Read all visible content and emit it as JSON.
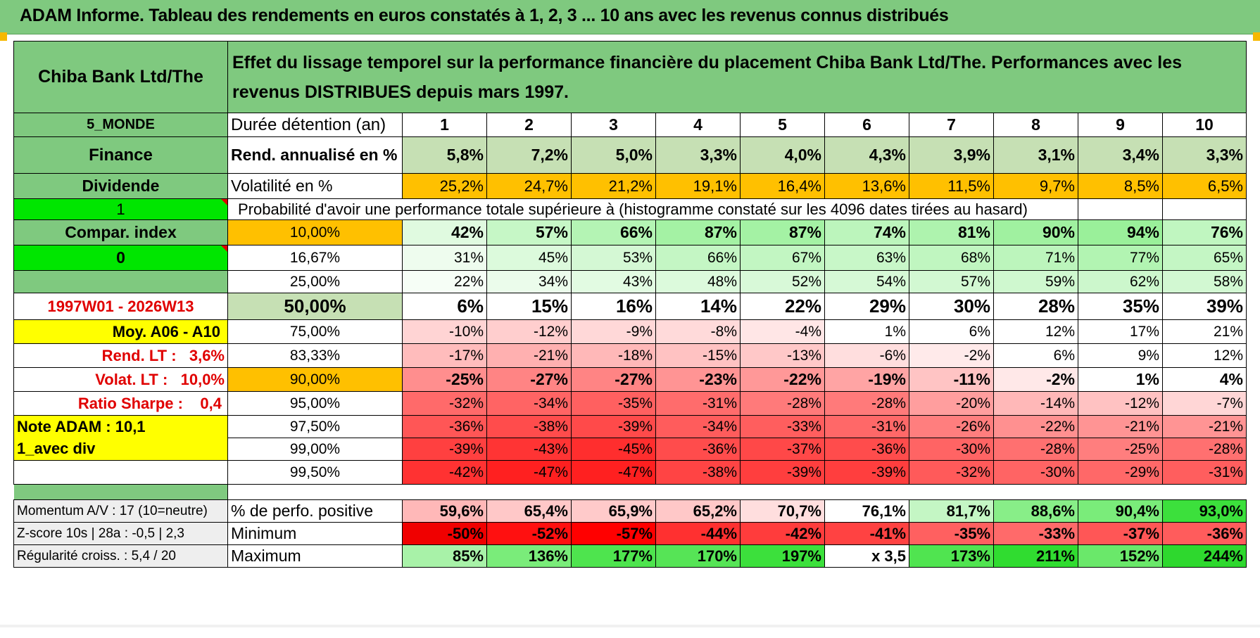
{
  "title": "ADAM Informe. Tableau des rendements en euros constatés à 1, 2, 3 ... 10 ans avec les revenus connus distribués",
  "header": {
    "name": "Chiba Bank Ltd/The",
    "description": "Effet du lissage temporel sur la performance financière du placement Chiba Bank Ltd/The. Performances avec les revenus DISTRIBUES depuis mars 1997."
  },
  "duration": {
    "left": "5_MONDE",
    "label": "Durée détention (an)",
    "years": [
      "1",
      "2",
      "3",
      "4",
      "5",
      "6",
      "7",
      "8",
      "9",
      "10"
    ]
  },
  "rend": {
    "left": "Finance",
    "label": "Rend. annualisé en %",
    "values": [
      "5,8%",
      "7,2%",
      "5,0%",
      "3,3%",
      "4,0%",
      "4,3%",
      "3,9%",
      "3,1%",
      "3,4%",
      "3,3%"
    ]
  },
  "vol": {
    "left": "Dividende",
    "label": "Volatilité en %",
    "values": [
      "25,2%",
      "24,7%",
      "21,2%",
      "19,1%",
      "16,4%",
      "13,6%",
      "11,5%",
      "9,7%",
      "8,5%",
      "6,5%"
    ]
  },
  "prob": {
    "left": "1",
    "text": "Probabilité d'avoir une performance totale supérieure à (histogramme constaté sur les 4096 dates tirées au hasard)"
  },
  "rows": [
    {
      "left": "Compar. index",
      "pct": "10,00%",
      "values": [
        "42%",
        "57%",
        "66%",
        "87%",
        "87%",
        "74%",
        "81%",
        "90%",
        "94%",
        "76%"
      ]
    },
    {
      "left": "0",
      "pct": "16,67%",
      "values": [
        "31%",
        "45%",
        "53%",
        "66%",
        "67%",
        "63%",
        "68%",
        "71%",
        "77%",
        "65%"
      ]
    },
    {
      "left": "",
      "pct": "25,00%",
      "values": [
        "22%",
        "34%",
        "43%",
        "48%",
        "52%",
        "54%",
        "57%",
        "59%",
        "62%",
        "58%"
      ]
    },
    {
      "left": "1997W01 - 2026W13",
      "pct": "50,00%",
      "values": [
        "6%",
        "15%",
        "16%",
        "14%",
        "22%",
        "29%",
        "30%",
        "28%",
        "35%",
        "39%"
      ]
    },
    {
      "left": "Moy. A06 - A10",
      "pct": "75,00%",
      "values": [
        "-10%",
        "-12%",
        "-9%",
        "-8%",
        "-4%",
        "1%",
        "6%",
        "12%",
        "17%",
        "21%"
      ]
    },
    {
      "left": "Rend. LT :   3,6%",
      "pct": "83,33%",
      "values": [
        "-17%",
        "-21%",
        "-18%",
        "-15%",
        "-13%",
        "-6%",
        "-2%",
        "6%",
        "9%",
        "12%"
      ]
    },
    {
      "left": "Volat. LT :   10,0%",
      "pct": "90,00%",
      "values": [
        "-25%",
        "-27%",
        "-27%",
        "-23%",
        "-22%",
        "-19%",
        "-11%",
        "-2%",
        "1%",
        "4%"
      ]
    },
    {
      "left": "Ratio Sharpe :    0,4",
      "pct": "95,00%",
      "values": [
        "-32%",
        "-34%",
        "-35%",
        "-31%",
        "-28%",
        "-28%",
        "-20%",
        "-14%",
        "-12%",
        "-7%"
      ]
    },
    {
      "left": "Note ADAM : 10,1",
      "pct": "97,50%",
      "values": [
        "-36%",
        "-38%",
        "-39%",
        "-34%",
        "-33%",
        "-31%",
        "-26%",
        "-22%",
        "-21%",
        "-21%"
      ]
    },
    {
      "left": "1_avec div",
      "pct": "99,00%",
      "values": [
        "-39%",
        "-43%",
        "-45%",
        "-36%",
        "-37%",
        "-36%",
        "-30%",
        "-28%",
        "-25%",
        "-28%"
      ]
    },
    {
      "left": "",
      "pct": "99,50%",
      "values": [
        "-42%",
        "-47%",
        "-47%",
        "-38%",
        "-39%",
        "-39%",
        "-32%",
        "-30%",
        "-29%",
        "-31%"
      ]
    }
  ],
  "bottom": [
    {
      "left": "Momentum A/V : 17 (10=neutre)",
      "label": "% de perfo. positive",
      "values": [
        "59,6%",
        "65,4%",
        "65,9%",
        "65,2%",
        "70,7%",
        "76,1%",
        "81,7%",
        "88,6%",
        "90,4%",
        "93,0%"
      ]
    },
    {
      "left": "Z-score 10s | 28a : -0,5 | 2,3",
      "label": "Minimum",
      "values": [
        "-50%",
        "-52%",
        "-57%",
        "-44%",
        "-42%",
        "-41%",
        "-35%",
        "-33%",
        "-37%",
        "-36%"
      ]
    },
    {
      "left": "Régularité croiss. : 5,4 / 20",
      "label": "Maximum",
      "values": [
        "85%",
        "136%",
        "177%",
        "170%",
        "197%",
        "x 3,5",
        "173%",
        "211%",
        "152%",
        "244%"
      ]
    }
  ],
  "colors": {
    "header_green": "#7fc97f",
    "light_green": "#c6e0b4",
    "orange": "#ffc000",
    "yellow": "#ffff00",
    "bright_green": "#00e600",
    "red_text": "#e00000"
  },
  "cell_colors": {
    "rows": [
      [
        "#e0fae0",
        "#c6f7c6",
        "#b4f4b4",
        "#a4f2a4",
        "#a4f2a4",
        "#bcf5bc",
        "#aef3ae",
        "#a0f1a0",
        "#9af09a",
        "#c0f6c0"
      ],
      [
        "#eefcee",
        "#dcfadc",
        "#d4f8d4",
        "#c4f6c4",
        "#c2f6c2",
        "#c8f7c8",
        "#c0f6c0",
        "#bcf5bc",
        "#b2f4b2",
        "#c4f6c4"
      ],
      [
        "#f6fef6",
        "#ebfceb",
        "#e2fbe2",
        "#dcfadc",
        "#d8f9d8",
        "#d6f9d6",
        "#d2f8d2",
        "#cff8cf",
        "#ccf7cc",
        "#d2f8d2"
      ],
      [
        "#ffffff",
        "#ffffff",
        "#ffffff",
        "#ffffff",
        "#ffffff",
        "#ffffff",
        "#ffffff",
        "#ffffff",
        "#ffffff",
        "#ffffff"
      ],
      [
        "#ffd4d4",
        "#ffcece",
        "#ffd8d8",
        "#ffdada",
        "#ffe6e6",
        "#ffffff",
        "#ffffff",
        "#ffffff",
        "#ffffff",
        "#ffffff"
      ],
      [
        "#ffbcbc",
        "#ffb0b0",
        "#ffb8b8",
        "#ffc2c2",
        "#ffc8c8",
        "#ffdede",
        "#ffeaea",
        "#ffffff",
        "#ffffff",
        "#ffffff"
      ],
      [
        "#ff8e8e",
        "#ff8484",
        "#ff8484",
        "#ff9494",
        "#ff9898",
        "#ffa4a4",
        "#ffc4c4",
        "#ffe8e8",
        "#ffffff",
        "#ffffff"
      ],
      [
        "#ff6a6a",
        "#ff6464",
        "#ff6060",
        "#ff6c6c",
        "#ff7a7a",
        "#ff7a7a",
        "#ff9e9e",
        "#ffb8b8",
        "#ffc2c2",
        "#ffd6d6"
      ],
      [
        "#ff5656",
        "#ff4c4c",
        "#ff4a4a",
        "#ff5c5c",
        "#ff5e5e",
        "#ff6868",
        "#ff7e7e",
        "#ff9090",
        "#ff9494",
        "#ff9494"
      ],
      [
        "#ff4040",
        "#ff3434",
        "#ff2e2e",
        "#ff4c4c",
        "#ff4848",
        "#ff4c4c",
        "#ff6464",
        "#ff7070",
        "#ff7e7e",
        "#ff7070"
      ],
      [
        "#ff3232",
        "#ff2020",
        "#ff2020",
        "#ff4444",
        "#ff3e3e",
        "#ff3e3e",
        "#ff5a5a",
        "#ff6464",
        "#ff6868",
        "#ff5e5e"
      ]
    ],
    "bottom": [
      [
        "#ffb8b8",
        "#ffc8c8",
        "#ffcaca",
        "#ffc8c8",
        "#ffdede",
        "#ffffff",
        "#c4f6c4",
        "#88ee88",
        "#7aec7a",
        "#3ce03c"
      ],
      [
        "#f00000",
        "#ff1010",
        "#ff0000",
        "#ff3030",
        "#ff3c3c",
        "#ff4242",
        "#ff6060",
        "#ff6a6a",
        "#ff5656",
        "#ff5c5c"
      ],
      [
        "#a8f2a8",
        "#7aec7a",
        "#4ee44e",
        "#56e456",
        "#3ce03c",
        "#ffffff",
        "#50e450",
        "#30dc30",
        "#6ae86a",
        "#2ed82e"
      ]
    ],
    "rend": [
      "#c6e0b4",
      "#c6e0b4",
      "#c6e0b4",
      "#c6e0b4",
      "#c6e0b4",
      "#c6e0b4",
      "#c6e0b4",
      "#c6e0b4",
      "#c6e0b4",
      "#c6e0b4"
    ]
  }
}
